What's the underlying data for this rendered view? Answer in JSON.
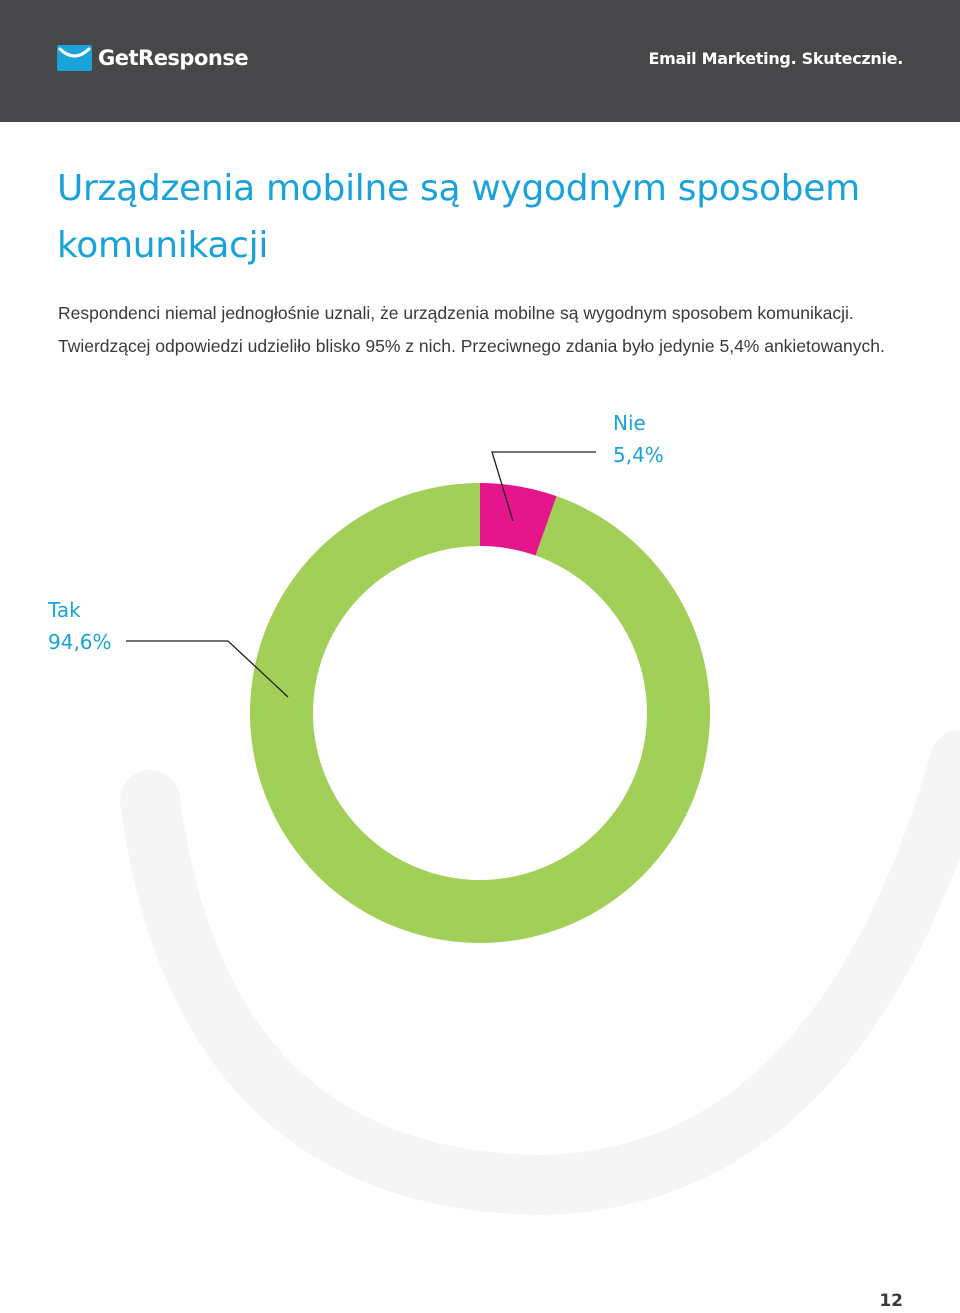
{
  "header": {
    "brand_name": "GetResponse",
    "tagline": "Email Marketing. Skutecznie.",
    "background_color": "#474749",
    "logo_icon": "envelope-smile-icon"
  },
  "page": {
    "title": "Urządzenia mobilne są wygodnym sposobem komunikacji",
    "intro": "Respondenci niemal jednogłośnie uznali, że urządzenia mobilne są wygodnym sposobem komunikacji. Twierdzącej odpowiedzi udzieliło blisko 95% z nich. Przeciwnego zdania było jedynie 5,4% ankietowanych.",
    "page_number": "12",
    "accent_color": "#1aa3da"
  },
  "chart_data": {
    "type": "pie",
    "style": "donut",
    "title": "",
    "categories": [
      "Tak",
      "Nie"
    ],
    "values": [
      94.6,
      5.4
    ],
    "value_labels": [
      "94,6%",
      "5,4%"
    ],
    "colors": [
      "#a2cf58",
      "#e5158b"
    ],
    "legend": "none"
  }
}
